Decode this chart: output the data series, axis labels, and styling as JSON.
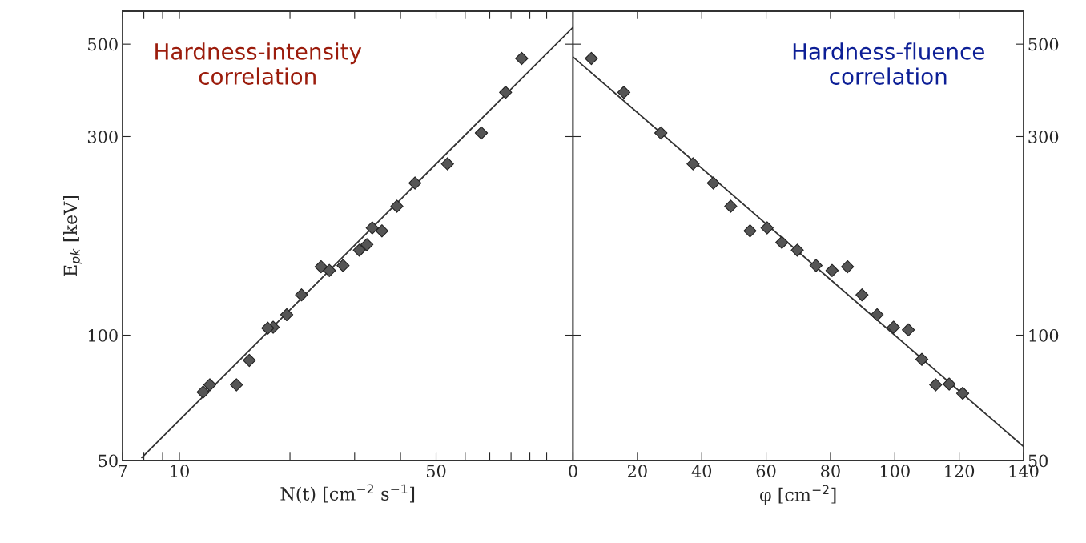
{
  "chart_data": [
    {
      "type": "scatter",
      "xlabel": "N(t) [cm$^{−2}$ s$^{−1}$]",
      "ylabel": "E$_{pk}$ [keV]",
      "annotations": [
        "Hardness-intensity\ncorrelation"
      ],
      "log": "xy",
      "grid": false,
      "legend": false,
      "xlim": [
        7,
        118
      ],
      "ylim": [
        50,
        600
      ],
      "xticks": [
        7,
        {
          "value": 8,
          "label": null
        },
        {
          "value": 9,
          "label": null
        },
        10,
        {
          "value": 20,
          "label": null
        },
        {
          "value": 30,
          "label": null
        },
        {
          "value": 40,
          "label": null
        },
        50,
        {
          "value": 60,
          "label": null
        },
        {
          "value": 70,
          "label": null
        },
        {
          "value": 80,
          "label": null
        },
        {
          "value": 90,
          "label": null
        },
        {
          "value": 100,
          "label": null
        }
      ],
      "yticks": [
        50,
        100,
        300,
        500
      ],
      "series": [
        {
          "marker": "diamond",
          "color": "#555555",
          "x": [
            85.5,
            77.3,
            66.4,
            53.7,
            43.8,
            39.1,
            33.5,
            35.6,
            30.9,
            32.4,
            27.9,
            25.6,
            24.3,
            21.5,
            19.6,
            18.0,
            17.4,
            15.5,
            14.3,
            12.1,
            11.6
          ],
          "values": [
            462,
            383,
            306,
            258,
            232,
            204,
            181,
            178,
            160,
            165,
            147,
            143,
            146,
            125,
            112,
            104.5,
            104,
            87,
            76,
            76,
            73
          ]
        },
        {
          "type": "line",
          "color": "#333333",
          "x": [
            7.9,
            118
          ],
          "values": [
            50.8,
            549
          ]
        }
      ]
    },
    {
      "type": "scatter",
      "xlabel": "φ [cm$^{−2}$]",
      "annotations": [
        "Hardness-fluence\ncorrelation"
      ],
      "log": "y",
      "grid": false,
      "legend": false,
      "xlim": [
        0,
        140
      ],
      "ylim": [
        50,
        600
      ],
      "xticks": [
        0,
        20,
        40,
        60,
        80,
        100,
        120,
        140
      ],
      "yticks": [
        50,
        100,
        300,
        500
      ],
      "series": [
        {
          "marker": "diamond",
          "color": "#555555",
          "x": [
            5.7,
            15.8,
            27.3,
            37.3,
            43.6,
            49.0,
            55.0,
            60.3,
            64.9,
            69.7,
            75.5,
            80.5,
            85.3,
            89.8,
            94.5,
            99.6,
            104.2,
            108.4,
            112.7,
            116.9,
            121.1
          ],
          "values": [
            462,
            383,
            306,
            258,
            232,
            204,
            178,
            181,
            167,
            160,
            147,
            143,
            146,
            125,
            112,
            104.5,
            103,
            87.5,
            76,
            76.3,
            72.5
          ]
        },
        {
          "type": "line",
          "color": "#333333",
          "x": [
            0,
            140
          ],
          "values": [
            466,
            54
          ]
        }
      ]
    }
  ]
}
